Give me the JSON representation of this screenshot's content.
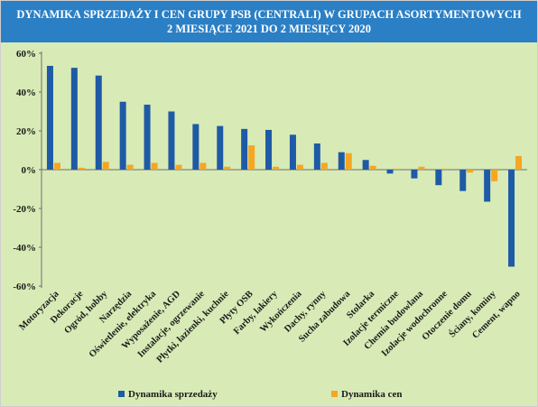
{
  "header": {
    "title_line1": "DYNAMIKA SPRZEDAŻY I CEN GRUPY PSB (CENTRALI) W GRUPACH ASORTYMENTOWYCH",
    "title_line2": "2 MIESIĄCE 2021 DO 2 MIESIĘCY 2020"
  },
  "colors": {
    "header_bg": "#2b7fc4",
    "plot_bg": "#d8ebb6",
    "series_sales": "#1f5aa6",
    "series_prices": "#f5a623"
  },
  "chart_data": {
    "type": "bar",
    "title": "DYNAMIKA SPRZEDAŻY I CEN GRUPY PSB (CENTRALI) W GRUPACH ASORTYMENTOWYCH 2 MIESIĄCE 2021 DO 2 MIESIĘCY 2020",
    "categories": [
      "Motoryzacja",
      "Dekoracje",
      "Ogród, hobby",
      "Narzędzia",
      "Oświetlenie, elektryka",
      "Wyposażenie, AGD",
      "Instalacje, ogrzewanie",
      "Płytki, łazienki, kuchnie",
      "Płyty OSB",
      "Farby, lakiery",
      "Wykończenia",
      "Dachy, rynny",
      "Sucha zabudowa",
      "Stolarka",
      "Izolacje termiczne",
      "Chemia budowlana",
      "Izolacje wodochronne",
      "Otoczenie domu",
      "Ściany, kominy",
      "Cement, wapno"
    ],
    "series": [
      {
        "name": "Dynamika sprzedaży",
        "values": [
          53.5,
          52.5,
          48.5,
          35,
          33.5,
          30,
          23.5,
          22.5,
          21,
          20.5,
          18,
          13.5,
          9,
          5,
          -2,
          -4.5,
          -8,
          -11,
          -16.5,
          -50
        ]
      },
      {
        "name": "Dynamika cen",
        "values": [
          3.5,
          1,
          4,
          2.5,
          3.5,
          2.5,
          3.5,
          1.5,
          12.5,
          1.5,
          2.5,
          3.5,
          8.5,
          2,
          0.5,
          1.5,
          0.5,
          -1.5,
          -6,
          7
        ]
      }
    ],
    "yticks": [
      "-60%",
      "-40%",
      "-20%",
      "0%",
      "20%",
      "40%",
      "60%"
    ],
    "ylim": [
      -60,
      60
    ],
    "xlabel": "",
    "ylabel": "",
    "grid": false,
    "legend_position": "bottom"
  }
}
